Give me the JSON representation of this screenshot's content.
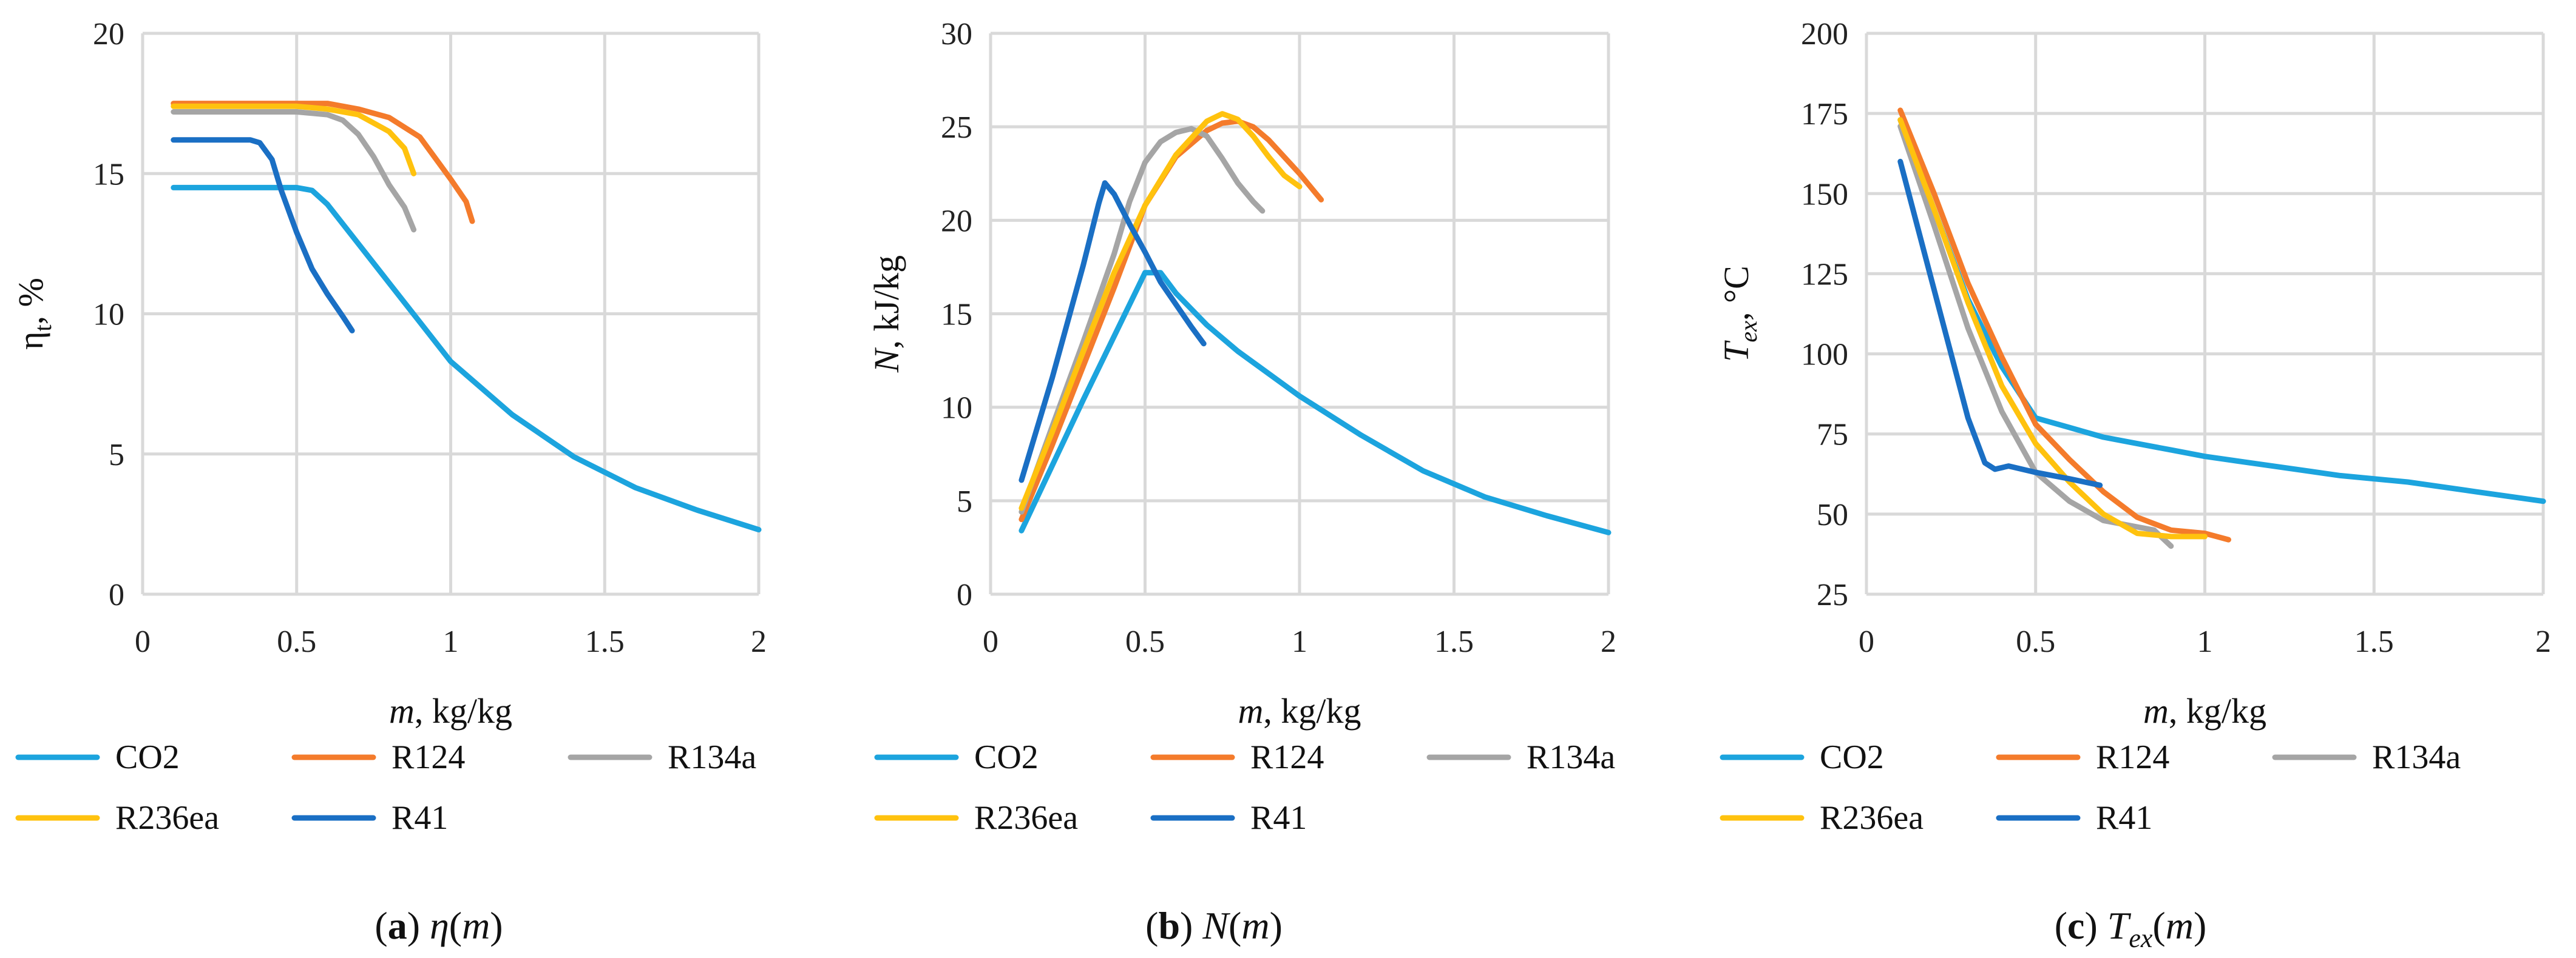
{
  "colors": {
    "CO2": "#1ca4de",
    "R124": "#f47b2b",
    "R134a": "#a5a5a5",
    "R236ea": "#ffc20e",
    "R41": "#1a6fc4"
  },
  "chart_data": [
    {
      "type": "line",
      "ylabel_parts": [
        "η",
        "t",
        ", %"
      ],
      "xlabel_parts": [
        "m",
        ", kg/kg"
      ],
      "caption_parts": [
        "(",
        "a",
        ") ",
        "η",
        "(",
        "m",
        ")"
      ],
      "xlim": [
        0,
        2
      ],
      "ylim": [
        0,
        20
      ],
      "xticks": [
        "0",
        "0.5",
        "1",
        "1.5",
        "2"
      ],
      "yticks": [
        "0",
        "5",
        "10",
        "15",
        "20"
      ],
      "legend": [
        "CO2",
        "R124",
        "R134a",
        "R236ea",
        "R41"
      ],
      "series": [
        {
          "name": "CO2",
          "x": [
            0.1,
            0.3,
            0.5,
            0.55,
            0.6,
            0.7,
            0.8,
            0.9,
            1.0,
            1.2,
            1.4,
            1.6,
            1.8,
            2.0
          ],
          "y": [
            14.5,
            14.5,
            14.5,
            14.4,
            13.9,
            12.5,
            11.1,
            9.7,
            8.3,
            6.4,
            4.9,
            3.8,
            3.0,
            2.3
          ]
        },
        {
          "name": "R124",
          "x": [
            0.1,
            0.3,
            0.5,
            0.6,
            0.7,
            0.8,
            0.9,
            1.0,
            1.05,
            1.07
          ],
          "y": [
            17.5,
            17.5,
            17.5,
            17.5,
            17.3,
            17.0,
            16.3,
            14.8,
            14.0,
            13.3
          ]
        },
        {
          "name": "R134a",
          "x": [
            0.1,
            0.3,
            0.5,
            0.6,
            0.65,
            0.7,
            0.75,
            0.8,
            0.85,
            0.88
          ],
          "y": [
            17.2,
            17.2,
            17.2,
            17.1,
            16.9,
            16.4,
            15.6,
            14.6,
            13.8,
            13.0
          ]
        },
        {
          "name": "R236ea",
          "x": [
            0.1,
            0.3,
            0.5,
            0.6,
            0.7,
            0.8,
            0.85,
            0.88
          ],
          "y": [
            17.4,
            17.4,
            17.4,
            17.3,
            17.1,
            16.5,
            15.9,
            15.0
          ]
        },
        {
          "name": "R41",
          "x": [
            0.1,
            0.2,
            0.3,
            0.35,
            0.38,
            0.42,
            0.45,
            0.5,
            0.55,
            0.6,
            0.65,
            0.68
          ],
          "y": [
            16.2,
            16.2,
            16.2,
            16.2,
            16.1,
            15.5,
            14.4,
            12.9,
            11.6,
            10.7,
            9.9,
            9.4
          ]
        }
      ]
    },
    {
      "type": "line",
      "ylabel_parts": [
        "N",
        ", kJ/kg"
      ],
      "xlabel_parts": [
        "m",
        ", kg/kg"
      ],
      "caption_parts": [
        "(",
        "b",
        ") ",
        "N",
        "(",
        "m",
        ")"
      ],
      "xlim": [
        0,
        2
      ],
      "ylim": [
        0,
        30
      ],
      "xticks": [
        "0",
        "0.5",
        "1",
        "1.5",
        "2"
      ],
      "yticks": [
        "0",
        "5",
        "10",
        "15",
        "20",
        "25",
        "30"
      ],
      "legend": [
        "CO2",
        "R124",
        "R134a",
        "R236ea",
        "R41"
      ],
      "series": [
        {
          "name": "CO2",
          "x": [
            0.1,
            0.2,
            0.3,
            0.4,
            0.5,
            0.55,
            0.6,
            0.7,
            0.8,
            0.9,
            1.0,
            1.2,
            1.4,
            1.6,
            1.8,
            2.0
          ],
          "y": [
            3.4,
            6.9,
            10.4,
            13.8,
            17.2,
            17.2,
            16.1,
            14.4,
            13.0,
            11.8,
            10.6,
            8.5,
            6.6,
            5.2,
            4.2,
            3.3
          ]
        },
        {
          "name": "R124",
          "x": [
            0.1,
            0.2,
            0.3,
            0.4,
            0.5,
            0.6,
            0.7,
            0.75,
            0.8,
            0.85,
            0.9,
            1.0,
            1.05,
            1.07
          ],
          "y": [
            4.0,
            8.0,
            12.2,
            16.4,
            20.8,
            23.4,
            24.8,
            25.2,
            25.3,
            25.0,
            24.3,
            22.5,
            21.5,
            21.1
          ]
        },
        {
          "name": "R134a",
          "x": [
            0.1,
            0.2,
            0.3,
            0.4,
            0.45,
            0.5,
            0.55,
            0.6,
            0.65,
            0.7,
            0.75,
            0.8,
            0.85,
            0.88
          ],
          "y": [
            4.4,
            9.0,
            13.5,
            18.2,
            21.0,
            23.1,
            24.2,
            24.7,
            24.9,
            24.5,
            23.3,
            22.0,
            21.0,
            20.5
          ]
        },
        {
          "name": "R236ea",
          "x": [
            0.1,
            0.2,
            0.3,
            0.4,
            0.5,
            0.6,
            0.7,
            0.75,
            0.8,
            0.85,
            0.9,
            0.95,
            1.0
          ],
          "y": [
            4.6,
            8.7,
            13.0,
            17.2,
            20.8,
            23.5,
            25.3,
            25.7,
            25.4,
            24.5,
            23.4,
            22.4,
            21.8
          ]
        },
        {
          "name": "R41",
          "x": [
            0.1,
            0.2,
            0.3,
            0.35,
            0.37,
            0.4,
            0.45,
            0.5,
            0.55,
            0.6,
            0.65,
            0.69
          ],
          "y": [
            6.1,
            11.6,
            17.6,
            20.9,
            22.0,
            21.4,
            19.8,
            18.3,
            16.7,
            15.5,
            14.3,
            13.4
          ]
        }
      ]
    },
    {
      "type": "line",
      "ylabel_parts": [
        "T",
        "ex",
        ", °C"
      ],
      "xlabel_parts": [
        "m",
        ", kg/kg"
      ],
      "caption_parts": [
        "(",
        "c",
        ") ",
        "T",
        "ex",
        "(",
        "m",
        ")"
      ],
      "xlim": [
        0,
        2
      ],
      "ylim": [
        25,
        200
      ],
      "xticks": [
        "0",
        "0.5",
        "1",
        "1.5",
        "2"
      ],
      "yticks": [
        "25",
        "50",
        "75",
        "100",
        "125",
        "150",
        "175",
        "200"
      ],
      "legend": [
        "CO2",
        "R124",
        "R134a",
        "R236ea",
        "R41"
      ],
      "series": [
        {
          "name": "CO2",
          "x": [
            0.1,
            0.2,
            0.3,
            0.4,
            0.5,
            0.6,
            0.7,
            0.8,
            0.9,
            1.0,
            1.2,
            1.4,
            1.6,
            1.8,
            2.0
          ],
          "y": [
            173,
            145,
            117,
            96,
            80,
            77,
            74,
            72,
            70,
            68,
            65,
            62,
            60,
            57,
            54
          ]
        },
        {
          "name": "R124",
          "x": [
            0.1,
            0.2,
            0.3,
            0.4,
            0.5,
            0.6,
            0.7,
            0.8,
            0.9,
            1.0,
            1.07
          ],
          "y": [
            176,
            150,
            122,
            99,
            78,
            67,
            57,
            49,
            45,
            44,
            42
          ]
        },
        {
          "name": "R134a",
          "x": [
            0.1,
            0.2,
            0.3,
            0.4,
            0.5,
            0.6,
            0.7,
            0.8,
            0.85,
            0.9
          ],
          "y": [
            171,
            140,
            108,
            82,
            63,
            54,
            48,
            46,
            45,
            40
          ]
        },
        {
          "name": "R236ea",
          "x": [
            0.1,
            0.2,
            0.3,
            0.4,
            0.5,
            0.6,
            0.7,
            0.8,
            0.9,
            1.0
          ],
          "y": [
            173,
            145,
            116,
            90,
            72,
            60,
            50,
            44,
            43,
            43
          ]
        },
        {
          "name": "R41",
          "x": [
            0.1,
            0.2,
            0.3,
            0.35,
            0.38,
            0.42,
            0.5,
            0.6,
            0.69
          ],
          "y": [
            160,
            120,
            80,
            66,
            64,
            65,
            63,
            61,
            59
          ]
        }
      ]
    }
  ]
}
